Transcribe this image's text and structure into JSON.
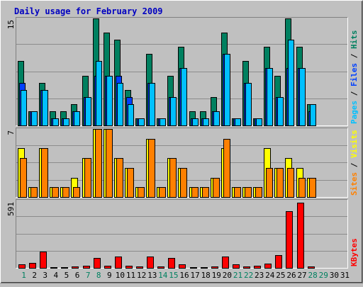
{
  "colors": {
    "background": "#c0c0c0",
    "plot_bg": "#c0c0c0",
    "border_dark": "#808080",
    "border_light": "#ffffff",
    "grid": "#8c8c8c",
    "title": "#0000c0",
    "hits": "#008060",
    "files": "#0040ff",
    "pages": "#00c0ff",
    "visits": "#ffff00",
    "sites": "#ff8000",
    "kbytes": "#ff0000",
    "weekend_tick": "#008060",
    "weekday_tick": "#000000",
    "separator": "#000000"
  },
  "chart_data": {
    "type": "bar",
    "title": "Daily usage for February 2009",
    "categories": [
      "1",
      "2",
      "3",
      "4",
      "5",
      "6",
      "7",
      "8",
      "9",
      "10",
      "11",
      "12",
      "13",
      "14",
      "15",
      "16",
      "17",
      "18",
      "19",
      "20",
      "21",
      "22",
      "23",
      "24",
      "25",
      "26",
      "27",
      "28",
      "29",
      "30",
      "31"
    ],
    "weekend_days": [
      "1",
      "7",
      "8",
      "14",
      "15",
      "21",
      "22",
      "28",
      "29"
    ],
    "panels": [
      {
        "id": "top",
        "max_label": "15",
        "ymax": 15,
        "right_label": [
          {
            "text": "Pages",
            "color_key": "pages"
          },
          {
            "text": " / ",
            "color_key": "separator"
          },
          {
            "text": "Files",
            "color_key": "files"
          },
          {
            "text": " / ",
            "color_key": "separator"
          },
          {
            "text": "Hits",
            "color_key": "hits"
          }
        ],
        "series": [
          {
            "name": "Hits",
            "color_key": "hits",
            "values": [
              9,
              2,
              6,
              2,
              2,
              3,
              7,
              15,
              13,
              12,
              5,
              1,
              10,
              1,
              7,
              11,
              2,
              2,
              4,
              13,
              1,
              9,
              1,
              11,
              7,
              15,
              11,
              3,
              0,
              0,
              0
            ]
          },
          {
            "name": "Files",
            "color_key": "files",
            "values": [
              6,
              2,
              5,
              1,
              1,
              2,
              4,
              7,
              7,
              7,
              4,
              1,
              6,
              1,
              4,
              8,
              1,
              1,
              2,
              10,
              1,
              6,
              1,
              8,
              4,
              8,
              8,
              2,
              0,
              0,
              0
            ]
          },
          {
            "name": "Pages",
            "color_key": "pages",
            "values": [
              5,
              2,
              5,
              1,
              1,
              2,
              4,
              9,
              7,
              6,
              3,
              1,
              6,
              1,
              4,
              8,
              1,
              1,
              2,
              10,
              1,
              6,
              1,
              8,
              4,
              12,
              8,
              3,
              0,
              0,
              0
            ]
          }
        ]
      },
      {
        "id": "middle",
        "max_label": "7",
        "ymax": 7,
        "right_label": [
          {
            "text": "Sites",
            "color_key": "sites"
          },
          {
            "text": " / ",
            "color_key": "separator"
          },
          {
            "text": "Visits",
            "color_key": "visits"
          }
        ],
        "series": [
          {
            "name": "Visits",
            "color_key": "visits",
            "values": [
              5,
              1,
              5,
              1,
              1,
              2,
              4,
              7,
              7,
              4,
              3,
              1,
              6,
              1,
              4,
              3,
              1,
              1,
              2,
              5,
              1,
              1,
              1,
              5,
              3,
              4,
              3,
              2,
              0,
              0,
              0
            ]
          },
          {
            "name": "Sites",
            "color_key": "sites",
            "values": [
              4,
              1,
              5,
              1,
              1,
              1,
              4,
              7,
              7,
              4,
              3,
              1,
              6,
              1,
              4,
              3,
              1,
              1,
              2,
              6,
              1,
              1,
              1,
              3,
              3,
              3,
              2,
              2,
              0,
              0,
              0
            ]
          }
        ]
      },
      {
        "id": "bottom",
        "max_label": "591",
        "ymax": 591,
        "right_label": [
          {
            "text": "KBytes",
            "color_key": "kbytes"
          }
        ],
        "series": [
          {
            "name": "KBytes",
            "color_key": "kbytes",
            "values": [
              30,
              45,
              140,
              8,
              8,
              12,
              18,
              85,
              18,
              100,
              18,
              12,
              100,
              15,
              85,
              30,
              8,
              8,
              12,
              100,
              30,
              12,
              20,
              40,
              110,
              500,
              575,
              15,
              0,
              0,
              0
            ]
          }
        ]
      }
    ]
  }
}
